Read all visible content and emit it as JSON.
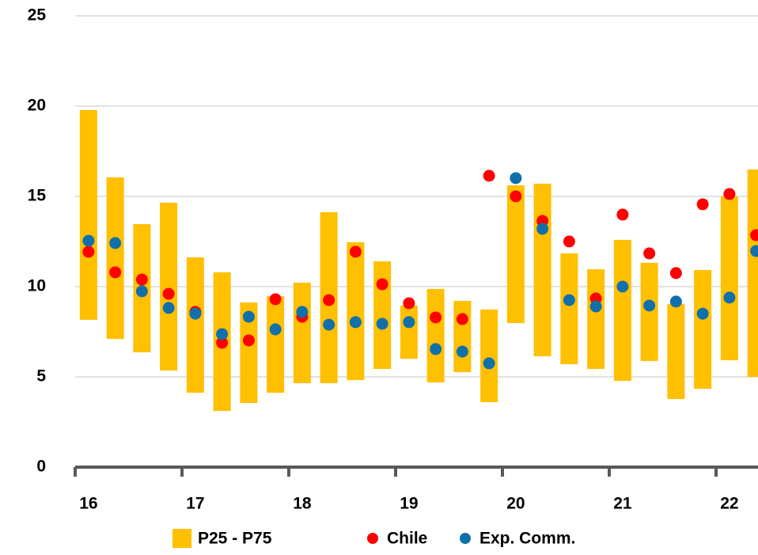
{
  "chart_data": {
    "type": "floating-bar",
    "categories": [
      "16",
      null,
      null,
      null,
      "17",
      null,
      null,
      null,
      "18",
      null,
      null,
      null,
      "19",
      null,
      null,
      null,
      "20",
      null,
      null,
      null,
      "21",
      null,
      null,
      null,
      "22",
      null
    ],
    "series": [
      {
        "name": "P25 - P75",
        "color": "#ffc000",
        "low": [
          8.16,
          7.1,
          6.36,
          5.35,
          4.12,
          3.11,
          3.55,
          4.12,
          4.65,
          4.65,
          4.82,
          5.44,
          6.0,
          4.69,
          5.26,
          3.6,
          7.98,
          6.14,
          5.7,
          5.44,
          4.78,
          5.88,
          3.77,
          4.34,
          5.92,
          5.0
        ],
        "high": [
          19.78,
          16.05,
          13.46,
          14.65,
          11.62,
          10.79,
          9.12,
          9.47,
          10.22,
          14.12,
          12.46,
          11.4,
          8.95,
          9.87,
          9.21,
          8.73,
          15.61,
          15.7,
          11.84,
          10.96,
          12.59,
          11.32,
          9.04,
          10.92,
          15.0,
          16.49
        ]
      },
      {
        "name": "Chile",
        "color": "#ff0000",
        "values": [
          11.93,
          10.79,
          10.39,
          9.6,
          8.6,
          6.89,
          7.02,
          9.3,
          8.33,
          9.25,
          11.93,
          10.13,
          9.08,
          8.29,
          8.2,
          16.14,
          15.0,
          13.64,
          12.5,
          9.34,
          13.99,
          11.84,
          10.75,
          14.56,
          15.13,
          12.85
        ]
      },
      {
        "name": "Exp. Comm.",
        "color": "#1170aa",
        "values": [
          12.54,
          12.41,
          9.74,
          8.82,
          8.5,
          7.37,
          8.33,
          7.63,
          8.6,
          7.89,
          8.03,
          7.94,
          8.03,
          6.54,
          6.4,
          5.75,
          16.01,
          13.2,
          9.25,
          8.9,
          10.0,
          8.95,
          9.17,
          8.5,
          9.39,
          11.97
        ]
      }
    ],
    "ylim": [
      0,
      25
    ],
    "yticks": [
      0,
      5,
      10,
      15,
      20,
      25
    ],
    "grid": true
  }
}
